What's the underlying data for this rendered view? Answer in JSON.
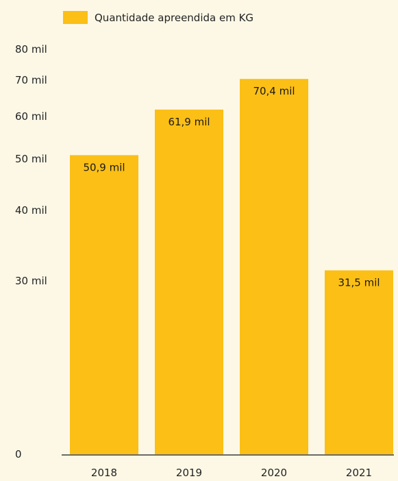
{
  "chart_data": {
    "type": "bar",
    "categories": [
      "2018",
      "2019",
      "2020",
      "2021"
    ],
    "series": [
      {
        "name": "Quantidade apreendida em KG",
        "values": [
          50900,
          61900,
          70400,
          31500
        ],
        "value_labels": [
          "50,9 mil",
          "61,9 mil",
          "70,4 mil",
          "31,5 mil"
        ],
        "color": "#fbbf16"
      }
    ],
    "y_ticks": [
      {
        "value": 0,
        "label": "0"
      },
      {
        "value": 30000,
        "label": "30 mil"
      },
      {
        "value": 40000,
        "label": "40 mil"
      },
      {
        "value": 50000,
        "label": "50 mil"
      },
      {
        "value": 60000,
        "label": "60 mil"
      },
      {
        "value": 70000,
        "label": "70 mil"
      },
      {
        "value": 80000,
        "label": "80 mil"
      }
    ],
    "ylim": [
      0,
      80000
    ],
    "grid": false,
    "legend": {
      "placement": "top-left",
      "label": "Quantidade apreendida em KG"
    }
  }
}
